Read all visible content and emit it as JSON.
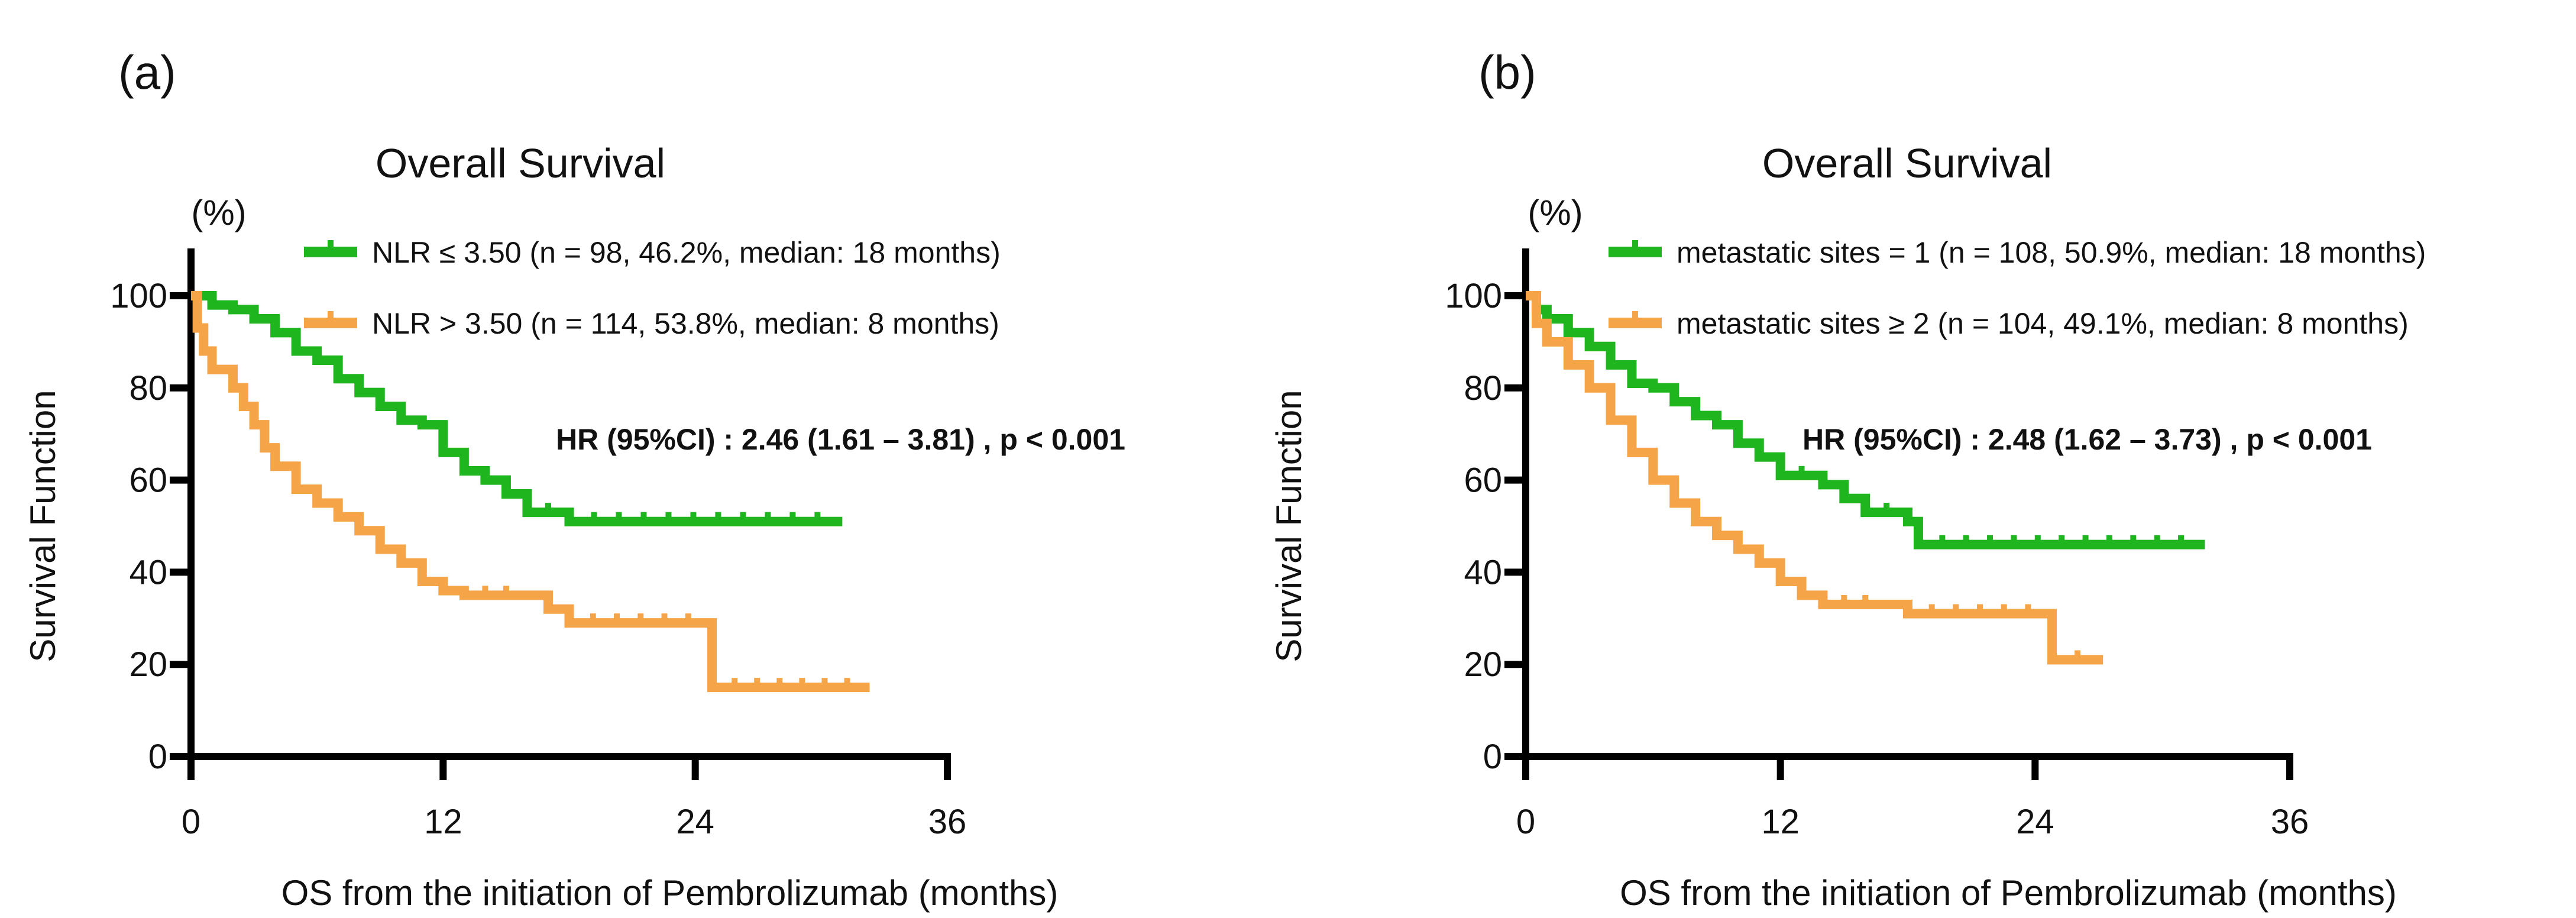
{
  "chart_data": [
    {
      "type": "line",
      "panel_label": "(a)",
      "title": "Overall Survival",
      "unit_label": "(%)",
      "xlabel": "OS from the initiation of Pembrolizumab (months)",
      "ylabel": "Survival Function",
      "xlim": [
        0,
        36
      ],
      "ylim": [
        0,
        100
      ],
      "xticks": [
        0,
        12,
        24,
        36
      ],
      "yticks": [
        0,
        20,
        40,
        60,
        80,
        100
      ],
      "annotation": "HR (95%CI) : 2.46 (1.61 – 3.81) , p < 0.001",
      "legend_placement": "top-right",
      "series": [
        {
          "name": "NLR ≤ 3.50 (n =   98, 46.2%, median: 18 months)",
          "color": "#1fb51f",
          "x": [
            0,
            0.5,
            1,
            2,
            3,
            4,
            5,
            6,
            7,
            8,
            9,
            10,
            11,
            12,
            13,
            14,
            15,
            16,
            18,
            31
          ],
          "y": [
            100,
            100,
            98,
            97,
            95,
            92,
            88,
            86,
            82,
            79,
            76,
            73,
            72,
            66,
            62,
            60,
            57,
            53,
            51,
            51
          ]
        },
        {
          "name": "NLR > 3.50 (n = 114, 53.8%, median:   8 months)",
          "color": "#f5a447",
          "x": [
            0,
            0.3,
            0.6,
            1,
            2,
            2.5,
            3,
            3.5,
            4,
            5,
            6,
            7,
            8,
            9,
            10,
            11,
            12,
            13,
            16,
            17,
            18,
            24.8,
            24.8,
            32.3
          ],
          "y": [
            100,
            93,
            88,
            84,
            80,
            76,
            72,
            67,
            63,
            58,
            55,
            52,
            49,
            45,
            42,
            38,
            36,
            35,
            35,
            32,
            29,
            29,
            15,
            15
          ]
        }
      ]
    },
    {
      "type": "line",
      "panel_label": "(b)",
      "title": "Overall Survival",
      "unit_label": "(%)",
      "xlabel": "OS from the initiation of Pembrolizumab (months)",
      "ylabel": "Survival Function",
      "xlim": [
        0,
        36
      ],
      "ylim": [
        0,
        100
      ],
      "xticks": [
        0,
        12,
        24,
        36
      ],
      "yticks": [
        0,
        20,
        40,
        60,
        80,
        100
      ],
      "annotation": "HR (95%CI) : 2.48 (1.62 – 3.73) , p < 0.001",
      "legend_placement": "top-right",
      "series": [
        {
          "name": "metastatic sites = 1   (n = 108, 50.9%, median: 18 months)",
          "color": "#1fb51f",
          "x": [
            0,
            0.5,
            1,
            2,
            3,
            4,
            5,
            6,
            7,
            8,
            9,
            10,
            11,
            12,
            14,
            15,
            16,
            18,
            18.5,
            32
          ],
          "y": [
            100,
            97,
            95,
            92,
            89,
            85,
            81,
            80,
            77,
            74,
            72,
            68,
            65,
            61,
            59,
            56,
            53,
            51,
            46,
            46
          ]
        },
        {
          "name": "metastatic sites ≥ 2   (n = 104, 49.1%, median:   8 months)",
          "color": "#f5a447",
          "x": [
            0,
            0.5,
            1,
            2,
            3,
            4,
            5,
            6,
            7,
            8,
            9,
            10,
            11,
            12,
            13,
            14,
            17,
            18,
            24.8,
            24.8,
            27.2
          ],
          "y": [
            100,
            94,
            90,
            85,
            80,
            73,
            66,
            60,
            55,
            51,
            48,
            45,
            42,
            38,
            35,
            33,
            33,
            31,
            31,
            21,
            21
          ]
        }
      ]
    }
  ]
}
